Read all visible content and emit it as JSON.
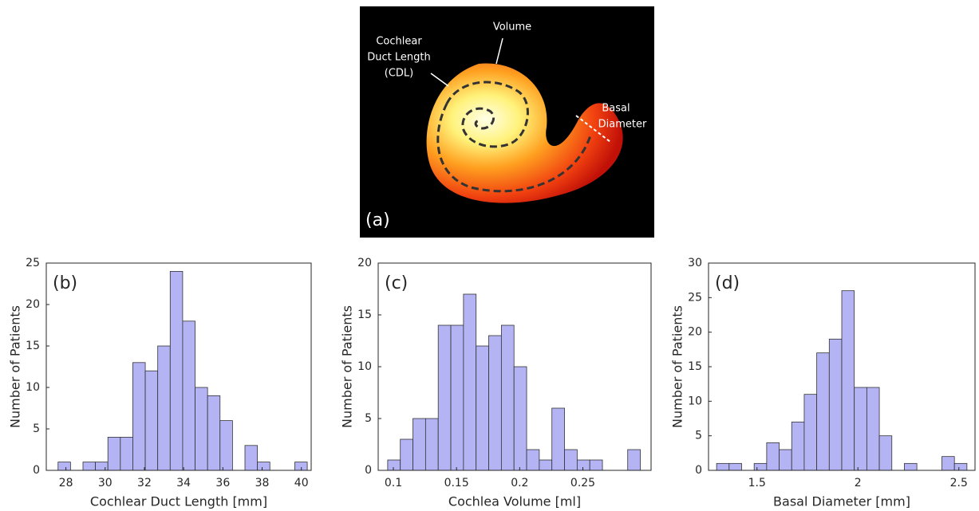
{
  "image": {
    "label": "(a)",
    "volume": "Volume",
    "cdl": [
      "Cochlear",
      "Duct Length",
      "(CDL)"
    ],
    "basal": [
      "Basal",
      "Diameter"
    ]
  },
  "chart_data": [
    {
      "type": "histogram",
      "panel_label": "(b)",
      "x_label": "Cochlear Duct Length [mm]",
      "y_label": "Number of Patients",
      "color": "#b4b4f4",
      "bins": [
        27.6,
        28.235,
        28.87,
        29.505,
        30.14,
        30.775,
        31.41,
        32.045,
        32.68,
        33.315,
        33.95,
        34.585,
        35.22,
        35.855,
        36.49,
        37.125,
        37.76,
        38.395,
        39.03,
        39.665,
        40.3
      ],
      "values": [
        1,
        0,
        1,
        1,
        4,
        4,
        13,
        12,
        15,
        24,
        18,
        10,
        9,
        6,
        0,
        3,
        1,
        0,
        0,
        1
      ],
      "xlim": [
        27,
        40.5
      ],
      "xticks": [
        28,
        30,
        32,
        34,
        36,
        38,
        40
      ],
      "ylim": [
        0,
        25
      ],
      "yticks": [
        0,
        5,
        10,
        15,
        20,
        25
      ]
    },
    {
      "type": "histogram",
      "panel_label": "(c)",
      "x_label": "Cochlea Volume [ml]",
      "y_label": "Number of Patients",
      "color": "#b4b4f4",
      "bins": [
        0.0955,
        0.1055,
        0.1155,
        0.1255,
        0.1355,
        0.1455,
        0.1555,
        0.1655,
        0.1755,
        0.1855,
        0.1955,
        0.2055,
        0.2155,
        0.2255,
        0.2355,
        0.2455,
        0.2555,
        0.2655,
        0.2755,
        0.2855,
        0.2955
      ],
      "values": [
        1,
        3,
        5,
        5,
        14,
        14,
        17,
        12,
        13,
        14,
        10,
        2,
        1,
        6,
        2,
        1,
        1,
        0,
        0,
        2
      ],
      "xlim": [
        0.088,
        0.304
      ],
      "xticks": [
        0.1,
        0.15,
        0.2,
        0.25
      ],
      "ylim": [
        0,
        20
      ],
      "yticks": [
        0,
        5,
        10,
        15,
        20
      ]
    },
    {
      "type": "histogram",
      "panel_label": "(d)",
      "x_label": "Basal Diameter [mm]",
      "y_label": "Number of Patients",
      "color": "#b4b4f4",
      "bins": [
        1.3,
        1.362,
        1.424,
        1.486,
        1.548,
        1.61,
        1.672,
        1.734,
        1.796,
        1.858,
        1.92,
        1.982,
        2.044,
        2.106,
        2.168,
        2.23,
        2.292,
        2.354,
        2.416,
        2.478,
        2.54
      ],
      "values": [
        1,
        1,
        0,
        1,
        4,
        3,
        7,
        11,
        17,
        19,
        26,
        12,
        12,
        5,
        0,
        1,
        0,
        0,
        2,
        1
      ],
      "xlim": [
        1.26,
        2.58
      ],
      "xticks": [
        1.5,
        2,
        2.5
      ],
      "ylim": [
        0,
        30
      ],
      "yticks": [
        0,
        5,
        10,
        15,
        20,
        25,
        30
      ]
    }
  ]
}
